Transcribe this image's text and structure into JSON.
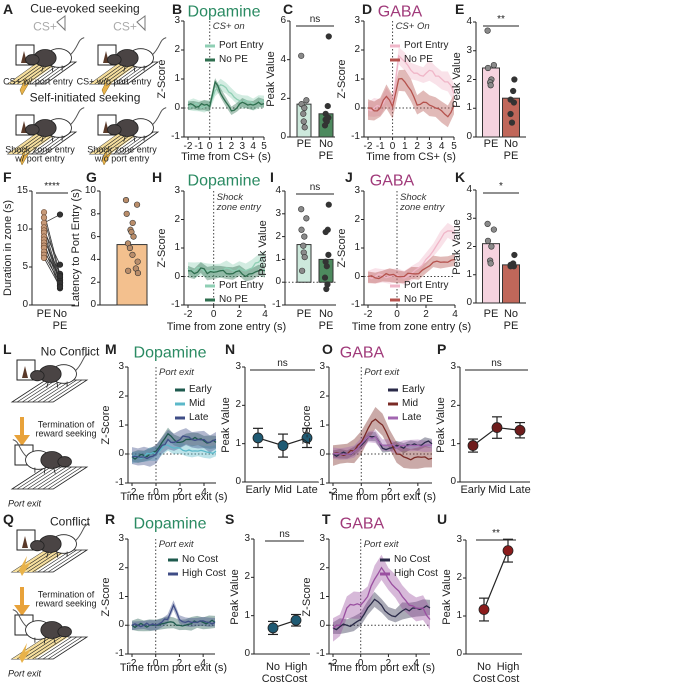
{
  "panel_letters": [
    "A",
    "B",
    "C",
    "D",
    "E",
    "F",
    "G",
    "H",
    "I",
    "J",
    "K",
    "L",
    "M",
    "N",
    "O",
    "P",
    "Q",
    "R",
    "S",
    "T",
    "U"
  ],
  "illustrations": {
    "A": {
      "title_top": "Cue-evoked seeking",
      "cue_left": "CS+",
      "cue_right": "CS+",
      "caption_1": "CS+ w/ port entry",
      "caption_2": "CS+ w/o port entry",
      "title_bottom": "Self-initiated seeking",
      "caption_3": "Shock zone entry w/ port entry",
      "caption_4": "Shock zone entry w/o port entry"
    },
    "L": {
      "title": "No Conflict",
      "arrow_text": "Termination of reward seeking",
      "caption": "Port exit"
    },
    "Q": {
      "title": "Conflict",
      "arrow_text": "Termination of reward seeking",
      "caption": "Port exit"
    },
    "arrow_color": "#e8a23a"
  },
  "chart_data": [
    {
      "panel": "B",
      "type": "line",
      "title": "Dopamine",
      "title_color": "#2a8a62",
      "xlabel": "Time from CS+ (s)",
      "ylabel": "Z-Score",
      "annotation": "CS+ on",
      "xlim": [
        -2,
        5
      ],
      "ylim": [
        -1,
        3
      ],
      "xticks": [
        -2,
        -1,
        0,
        1,
        2,
        3,
        4,
        5
      ],
      "yticks": [
        -1,
        0,
        1,
        2,
        3
      ],
      "x": [
        -2,
        -1.5,
        -1,
        -0.5,
        0,
        0.5,
        1,
        1.5,
        2,
        2.5,
        3,
        3.5,
        4,
        4.5,
        5
      ],
      "series": [
        {
          "name": "Port Entry",
          "color": "#8fcfb4",
          "sem": 0.2,
          "y": [
            0.1,
            0.1,
            0.1,
            0.05,
            0.1,
            0.6,
            0.8,
            0.7,
            0.5,
            0.3,
            0.2,
            0.2,
            0.15,
            0.2,
            0.2
          ]
        },
        {
          "name": "No PE",
          "color": "#2e6e4e",
          "sem": 0.15,
          "y": [
            0.1,
            0.1,
            0.05,
            0.1,
            0.05,
            0.9,
            0.5,
            0.2,
            -0.1,
            0.0,
            0.2,
            0.1,
            0.1,
            0.2,
            0.15
          ]
        }
      ]
    },
    {
      "panel": "C",
      "type": "bar",
      "ylabel": "Peak Value",
      "ylim": [
        0,
        6
      ],
      "yticks": [
        0,
        2,
        4,
        6
      ],
      "significance": "ns",
      "categories": [
        "PE",
        "No PE"
      ],
      "values": [
        1.7,
        1.2
      ],
      "colors": [
        "#cde9dc",
        "#4d8a5e"
      ],
      "points": [
        [
          4.2,
          1.9,
          1.7,
          1.5,
          1.2,
          0.8,
          0.5
        ],
        [
          5.2,
          1.6,
          1.2,
          1.0,
          0.9,
          0.8,
          0.6
        ]
      ]
    },
    {
      "panel": "D",
      "type": "line",
      "title": "GABA",
      "title_color": "#a03a7a",
      "xlabel": "Time from CS+ (s)",
      "ylabel": "Z-Score",
      "annotation": "CS+ On",
      "xlim": [
        -2,
        5
      ],
      "ylim": [
        -1,
        3
      ],
      "xticks": [
        -2,
        -1,
        0,
        1,
        2,
        3,
        4,
        5
      ],
      "yticks": [
        -1,
        0,
        1,
        2,
        3
      ],
      "x": [
        -2,
        -1.5,
        -1,
        -0.5,
        0,
        0.5,
        1,
        1.5,
        2,
        2.5,
        3,
        3.5,
        4,
        4.5,
        5
      ],
      "series": [
        {
          "name": "Port Entry",
          "color": "#f0b6c8",
          "sem": 0.3,
          "y": [
            -0.05,
            0,
            0.05,
            0.4,
            0.1,
            1.8,
            1.6,
            1.3,
            1.2,
            1.1,
            1.3,
            1.1,
            1.0,
            0.9,
            0.5
          ]
        },
        {
          "name": "No PE",
          "color": "#b5524d",
          "sem": 0.35,
          "y": [
            0,
            -0.1,
            0,
            0.4,
            0.05,
            1.0,
            0.9,
            0.6,
            0.1,
            0.2,
            0.1,
            0.0,
            -0.1,
            -0.3,
            0.1
          ]
        }
      ]
    },
    {
      "panel": "E",
      "type": "bar",
      "ylabel": "Peak Value",
      "ylim": [
        0,
        4
      ],
      "yticks": [
        0,
        1,
        2,
        3,
        4
      ],
      "significance": "**",
      "categories": [
        "PE",
        "No PE"
      ],
      "values": [
        2.4,
        1.35
      ],
      "colors": [
        "#f5d3df",
        "#c0675a"
      ],
      "points": [
        [
          3.7,
          2.5,
          2.4,
          2.0,
          1.9,
          1.8
        ],
        [
          2.0,
          1.6,
          1.3,
          1.2,
          0.8,
          0.5
        ]
      ]
    },
    {
      "panel": "F",
      "type": "paired",
      "ylabel": "Duration in zone (s)",
      "ylim": [
        0,
        15
      ],
      "yticks": [
        0,
        5,
        10,
        15
      ],
      "significance": "****",
      "categories": [
        "PE",
        "No PE"
      ],
      "color": "#c89a78",
      "pairs": [
        [
          12.2,
          4.0
        ],
        [
          11.5,
          3.6
        ],
        [
          10.8,
          11.9
        ],
        [
          10.2,
          3.2
        ],
        [
          9.8,
          5.3
        ],
        [
          9.5,
          3.0
        ],
        [
          9.0,
          2.8
        ],
        [
          8.6,
          4.1
        ],
        [
          8.2,
          2.5
        ],
        [
          7.8,
          3.3
        ],
        [
          7.5,
          2.2
        ],
        [
          7.0,
          3.8
        ],
        [
          6.6,
          2.9
        ],
        [
          6.2,
          2.4
        ]
      ]
    },
    {
      "panel": "G",
      "type": "bar",
      "ylabel": "Latency to Port Entry (s)",
      "ylim": [
        0,
        10
      ],
      "yticks": [
        0,
        2,
        4,
        6,
        8,
        10
      ],
      "categories": [
        ""
      ],
      "values": [
        5.3
      ],
      "colors": [
        "#f3c08e"
      ],
      "points": [
        [
          9.2,
          8.8,
          8.0,
          7.2,
          6.6,
          6.4,
          6.0,
          5.4,
          5.0,
          4.4,
          3.8,
          3.2,
          3.0,
          2.8
        ]
      ]
    },
    {
      "panel": "H",
      "type": "line",
      "title": "Dopamine",
      "title_color": "#2a8a62",
      "xlabel": "Time from zone entry (s)",
      "ylabel": "Z-Score",
      "annotation": "Shock zone entry",
      "xlim": [
        -2,
        4
      ],
      "ylim": [
        -1,
        3
      ],
      "xticks": [
        -2,
        0,
        2,
        4
      ],
      "yticks": [
        -1,
        0,
        1,
        2,
        3
      ],
      "x": [
        -2,
        -1.5,
        -1,
        -0.5,
        0,
        0.5,
        1,
        1.5,
        2,
        2.5,
        3,
        3.5,
        4
      ],
      "series": [
        {
          "name": "Port Entry",
          "color": "#8fcfb4",
          "sem": 0.25,
          "y": [
            0.3,
            0.2,
            0.3,
            0.2,
            0.2,
            0.2,
            0.3,
            0.2,
            0.3,
            0.2,
            0.3,
            0.5,
            0.7
          ]
        },
        {
          "name": "No PE",
          "color": "#2e6e4e",
          "sem": 0.2,
          "y": [
            0.2,
            0.1,
            0.3,
            0.1,
            0.15,
            0.2,
            0.1,
            0.1,
            0.2,
            0.0,
            0.1,
            0.2,
            0.2
          ]
        }
      ]
    },
    {
      "panel": "I",
      "type": "bar",
      "ylabel": "Peak Value",
      "ylim": [
        -1,
        4
      ],
      "yticks": [
        -1,
        0,
        1,
        2,
        3,
        4
      ],
      "significance": "ns",
      "categories": [
        "PE",
        "No PE"
      ],
      "values": [
        1.65,
        1.0
      ],
      "colors": [
        "#cde9dc",
        "#4d8a5e"
      ],
      "points": [
        [
          3.2,
          2.8,
          2.3,
          2.0,
          1.6,
          1.3,
          1.1,
          0.5
        ],
        [
          3.4,
          2.3,
          2.2,
          1.2,
          0.9,
          0.7,
          0.2,
          -0.1,
          -0.3
        ]
      ]
    },
    {
      "panel": "J",
      "type": "line",
      "title": "GABA",
      "title_color": "#a03a7a",
      "xlabel": "Time from zone entry (s)",
      "ylabel": "Z-Score",
      "annotation": "Shock zone entry",
      "xlim": [
        -2,
        4
      ],
      "ylim": [
        -1,
        3
      ],
      "xticks": [
        -2,
        0,
        2,
        4
      ],
      "yticks": [
        -1,
        0,
        1,
        2,
        3
      ],
      "x": [
        -2,
        -1.5,
        -1,
        -0.5,
        0,
        0.5,
        1,
        1.5,
        2,
        2.5,
        3,
        3.5,
        4
      ],
      "series": [
        {
          "name": "Port Entry",
          "color": "#f0b6c8",
          "sem": 0.25,
          "y": [
            0,
            0,
            0.05,
            0,
            0.05,
            -0.05,
            0.1,
            0.3,
            0.6,
            0.9,
            1.3,
            1.6,
            1.5
          ]
        },
        {
          "name": "No PE",
          "color": "#b5524d",
          "sem": 0.2,
          "y": [
            0,
            -0.05,
            0,
            0.05,
            0,
            0,
            0.1,
            0.1,
            0.3,
            0.5,
            0.5,
            0.5,
            0.6
          ]
        }
      ]
    },
    {
      "panel": "K",
      "type": "bar",
      "ylabel": "Peak Value",
      "ylim": [
        0,
        4
      ],
      "yticks": [
        0,
        1,
        2,
        3,
        4
      ],
      "significance": "*",
      "categories": [
        "PE",
        "No PE"
      ],
      "values": [
        2.1,
        1.35
      ],
      "colors": [
        "#f5d3df",
        "#c0675a"
      ],
      "points": [
        [
          2.8,
          2.6,
          2.2,
          2.0,
          1.5,
          1.4
        ],
        [
          1.7,
          1.4,
          1.35,
          1.3,
          1.3
        ]
      ]
    },
    {
      "panel": "M",
      "type": "line",
      "title": "Dopamine",
      "title_color": "#2a8a62",
      "xlabel": "Time from port exit (s)",
      "ylabel": "Z-Score",
      "annotation": "Port exit",
      "xlim": [
        -2,
        5
      ],
      "ylim": [
        -1,
        3
      ],
      "xticks": [
        -2,
        0,
        2,
        4
      ],
      "yticks": [
        -1,
        0,
        1,
        2,
        3
      ],
      "x": [
        -2,
        -1.5,
        -1,
        -0.5,
        0,
        0.5,
        1,
        1.5,
        2,
        2.5,
        3,
        3.5,
        4,
        4.5,
        5
      ],
      "series": [
        {
          "name": "Early",
          "color": "#1e5a4e",
          "sem": 0.2,
          "y": [
            -0.1,
            -0.1,
            -0.05,
            0.0,
            0.1,
            0.4,
            0.7,
            0.5,
            0.4,
            0.5,
            0.5,
            0.5,
            0.45,
            0.4,
            0.4
          ]
        },
        {
          "name": "Mid",
          "color": "#5bb8c9",
          "sem": 0.2,
          "y": [
            -0.1,
            -0.1,
            -0.1,
            0,
            0,
            0.2,
            0.3,
            0.2,
            0.2,
            0.1,
            0.1,
            0.1,
            0.1,
            0.05,
            0.1
          ]
        },
        {
          "name": "Late",
          "color": "#3f4d86",
          "sem": 0.3,
          "y": [
            -0.1,
            -0.1,
            -0.1,
            -0.1,
            0,
            0.3,
            0.5,
            0.4,
            0.5,
            0.6,
            0.5,
            0.5,
            0.5,
            0.4,
            0.5
          ]
        }
      ]
    },
    {
      "panel": "N",
      "type": "errorbar",
      "ylabel": "Peak Value",
      "ylim": [
        0,
        3
      ],
      "yticks": [
        0,
        1,
        2,
        3
      ],
      "significance": "ns",
      "color": "#1f5a73",
      "categories": [
        "Early",
        "Mid",
        "Late"
      ],
      "values": [
        1.15,
        0.95,
        1.15
      ],
      "errors": [
        0.25,
        0.3,
        0.25
      ]
    },
    {
      "panel": "O",
      "type": "line",
      "title": "GABA",
      "title_color": "#a03a7a",
      "xlabel": "Time from port exit (s)",
      "ylabel": "Z-Score",
      "annotation": "Port exit",
      "xlim": [
        -2,
        5
      ],
      "ylim": [
        -1,
        3
      ],
      "xticks": [
        -2,
        0,
        2,
        4
      ],
      "yticks": [
        -1,
        0,
        1,
        2,
        3
      ],
      "x": [
        -2,
        -1.5,
        -1,
        -0.5,
        0,
        0.5,
        1,
        1.5,
        2,
        2.5,
        3,
        3.5,
        4,
        4.5,
        5
      ],
      "series": [
        {
          "name": "Early",
          "color": "#2a2a48",
          "sem": 0.15,
          "y": [
            0,
            0,
            0,
            0.1,
            0.3,
            0.6,
            0.6,
            0.2,
            0.2,
            0.3,
            0.2,
            0.3,
            0.3,
            0.4,
            0.35
          ]
        },
        {
          "name": "Mid",
          "color": "#7a2a25",
          "sem": 0.35,
          "y": [
            0,
            0,
            0,
            0.1,
            0.4,
            0.9,
            1.2,
            1.0,
            0.5,
            0.0,
            -0.1,
            -0.2,
            -0.1,
            -0.1,
            -0.15
          ]
        },
        {
          "name": "Late",
          "color": "#a266b0",
          "sem": 0.2,
          "y": [
            0,
            0,
            0,
            0.1,
            0.35,
            0.6,
            0.6,
            0.3,
            0.3,
            0.2,
            0.3,
            0.3,
            0.3,
            0.3,
            0.3
          ]
        }
      ]
    },
    {
      "panel": "P",
      "type": "errorbar",
      "ylabel": "Peak Value",
      "ylim": [
        0,
        3
      ],
      "yticks": [
        0,
        1,
        2,
        3
      ],
      "significance": "ns",
      "color": "#6e1c1c",
      "categories": [
        "Early",
        "Mid",
        "Late"
      ],
      "values": [
        0.95,
        1.42,
        1.35
      ],
      "errors": [
        0.17,
        0.28,
        0.2
      ]
    },
    {
      "panel": "R",
      "type": "line",
      "title": "Dopamine",
      "title_color": "#2a8a62",
      "xlabel": "Time from port exit (s)",
      "ylabel": "Z-Score",
      "annotation": "Port exit",
      "xlim": [
        -2,
        5
      ],
      "ylim": [
        -1,
        3
      ],
      "xticks": [
        -2,
        0,
        2,
        4
      ],
      "yticks": [
        -1,
        0,
        1,
        2,
        3
      ],
      "x": [
        -2,
        -1.5,
        -1,
        -0.5,
        0,
        0.5,
        1,
        1.5,
        2,
        2.5,
        3,
        3.5,
        4,
        4.5,
        5
      ],
      "series": [
        {
          "name": "No Cost",
          "color": "#1e5a4e",
          "sem": 0.2,
          "y": [
            0,
            0,
            0,
            0,
            0,
            0.05,
            0.1,
            0.1,
            0,
            0,
            0.05,
            0.1,
            0.1,
            0.1,
            0.1
          ]
        },
        {
          "name": "High Cost",
          "color": "#3f4d86",
          "sem": 0.15,
          "y": [
            0,
            0,
            0,
            0,
            0,
            0.1,
            0.2,
            0.7,
            0.2,
            0.1,
            0.1,
            0.1,
            0.15,
            0.1,
            0.1
          ]
        }
      ]
    },
    {
      "panel": "S",
      "type": "errorbar",
      "ylabel": "Peak Value",
      "ylim": [
        0,
        3
      ],
      "yticks": [
        0,
        1,
        2,
        3
      ],
      "significance": "ns",
      "color": "#1f5a73",
      "categories": [
        "No Cost",
        "High Cost"
      ],
      "values": [
        0.68,
        0.88
      ],
      "errors": [
        0.17,
        0.15
      ]
    },
    {
      "panel": "T",
      "type": "line",
      "title": "GABA",
      "title_color": "#a03a7a",
      "xlabel": "Time from port exit (s)",
      "ylabel": "Z-Score",
      "annotation": "Port exit",
      "xlim": [
        -2,
        5
      ],
      "ylim": [
        -1,
        3
      ],
      "xticks": [
        -2,
        0,
        2,
        4
      ],
      "yticks": [
        -1,
        0,
        1,
        2,
        3
      ],
      "x": [
        -2,
        -1.5,
        -1,
        -0.5,
        0,
        0.5,
        1,
        1.5,
        2,
        2.5,
        3,
        3.5,
        4,
        4.5,
        5
      ],
      "series": [
        {
          "name": "No Cost",
          "color": "#2a2a48",
          "sem": 0.25,
          "y": [
            -0.1,
            -0.05,
            0,
            0.05,
            0.2,
            0.6,
            0.9,
            0.7,
            0.4,
            0.3,
            0.5,
            0.5,
            0.6,
            0.6,
            0.6
          ]
        },
        {
          "name": "High Cost",
          "color": "#9a4fa0",
          "sem": 0.4,
          "y": [
            -0.1,
            0,
            0.6,
            0.7,
            0.7,
            1.0,
            1.6,
            2.0,
            1.6,
            1.3,
            1.0,
            0.7,
            0.6,
            0.6,
            0.2
          ]
        }
      ]
    },
    {
      "panel": "U",
      "type": "errorbar",
      "ylabel": "Peak Value",
      "ylim": [
        0,
        3
      ],
      "yticks": [
        0,
        1,
        2,
        3
      ],
      "significance": "**",
      "color": "#8b1c1c",
      "categories": [
        "No Cost",
        "High Cost"
      ],
      "values": [
        1.17,
        2.72
      ],
      "errors": [
        0.3,
        0.3
      ]
    }
  ]
}
